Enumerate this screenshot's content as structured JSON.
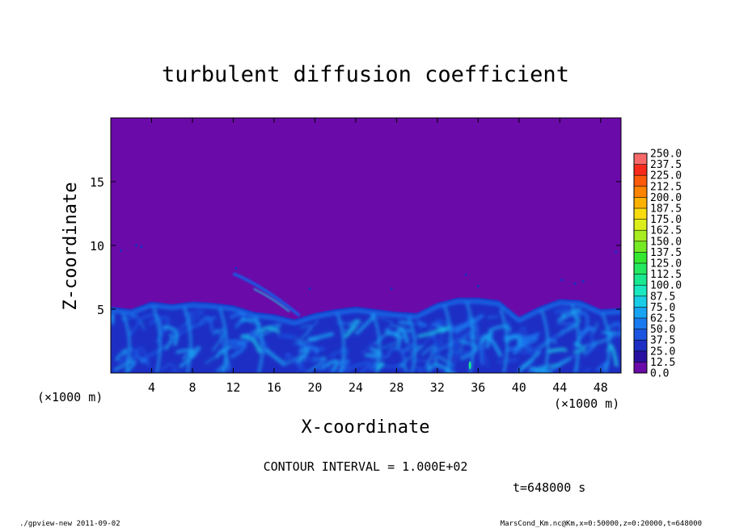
{
  "chart_data": {
    "type": "heatmap",
    "title": "turbulent diffusion coefficient",
    "xlabel": "X-coordinate",
    "ylabel": "Z-coordinate",
    "x_unit": "(×1000 m)",
    "y_unit": "(×1000 m)",
    "xlim": [
      0,
      50
    ],
    "ylim": [
      0,
      20
    ],
    "x_ticks": [
      4,
      8,
      12,
      16,
      20,
      24,
      28,
      32,
      36,
      40,
      44,
      48
    ],
    "y_ticks": [
      5,
      10,
      15
    ],
    "colorbar": {
      "levels": [
        0.0,
        12.5,
        25.0,
        37.5,
        50.0,
        62.5,
        75.0,
        87.5,
        100.0,
        112.5,
        125.0,
        137.5,
        150.0,
        162.5,
        175.0,
        187.5,
        200.0,
        212.5,
        225.0,
        237.5,
        250.0
      ],
      "labels": [
        "0.0",
        "12.5",
        "25.0",
        "37.5",
        "50.0",
        "62.5",
        "75.0",
        "87.5",
        "100.0",
        "112.5",
        "125.0",
        "137.5",
        "150.0",
        "162.5",
        "175.0",
        "187.5",
        "200.0",
        "212.5",
        "225.0",
        "237.5",
        "250.0"
      ],
      "colors": [
        "#6a0aa8",
        "#2a10a0",
        "#1d2ec4",
        "#1b54e0",
        "#1a7af0",
        "#18a4f2",
        "#19cde6",
        "#1ae8c0",
        "#18e890",
        "#24e860",
        "#34e830",
        "#74ea24",
        "#a6ec20",
        "#dcee1a",
        "#f8dc10",
        "#fcb000",
        "#fc8400",
        "#fc5a0a",
        "#f82a1a",
        "#f86a6a"
      ]
    },
    "field": {
      "background_value": 0.0,
      "boundary_layer_top": [
        [
          0,
          5.2
        ],
        [
          2,
          5.0
        ],
        [
          4,
          5.6
        ],
        [
          6,
          5.4
        ],
        [
          8,
          5.6
        ],
        [
          10,
          5.5
        ],
        [
          12,
          5.3
        ],
        [
          14,
          4.8
        ],
        [
          16,
          4.6
        ],
        [
          18,
          4.2
        ],
        [
          20,
          4.7
        ],
        [
          22,
          5.0
        ],
        [
          24,
          5.2
        ],
        [
          26,
          5.0
        ],
        [
          28,
          4.8
        ],
        [
          30,
          4.7
        ],
        [
          32,
          5.5
        ],
        [
          34,
          5.9
        ],
        [
          36,
          5.9
        ],
        [
          38,
          5.7
        ],
        [
          40,
          4.4
        ],
        [
          42,
          5.2
        ],
        [
          44,
          5.8
        ],
        [
          46,
          5.7
        ],
        [
          48,
          5.0
        ],
        [
          50,
          5.1
        ]
      ],
      "max_near": [
        35.2,
        0.6
      ]
    },
    "contour_interval": "CONTOUR INTERVAL = 1.000E+02",
    "time_label": "t=648000 s"
  },
  "footer": {
    "left": "./gpview-new  2011-09-02",
    "right": "MarsCond_Km.nc@Km,x=0:50000,z=0:20000,t=648000"
  }
}
